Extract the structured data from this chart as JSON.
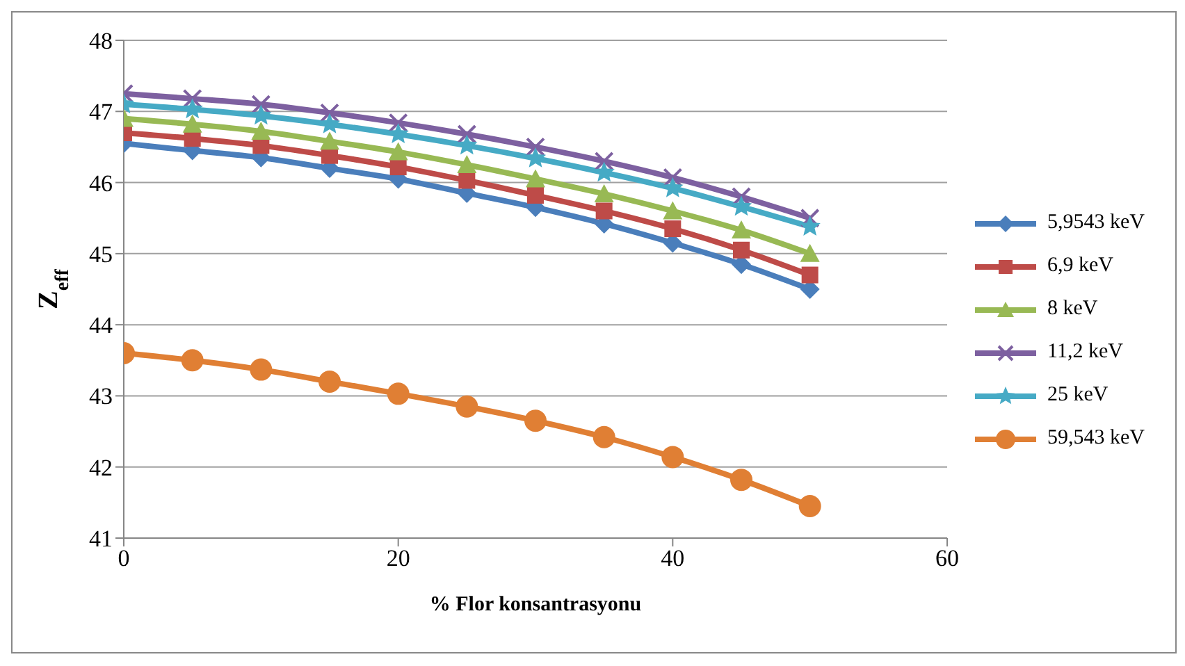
{
  "chart_data": {
    "type": "line",
    "xlabel": "% Flor konsantrasyonu",
    "ylabel": "Z$_{eff}$",
    "x": [
      0,
      5,
      10,
      15,
      20,
      25,
      30,
      35,
      40,
      45,
      50
    ],
    "xlim": [
      0,
      60
    ],
    "xticks": [
      0,
      20,
      40,
      60
    ],
    "ylim": [
      41,
      48
    ],
    "yticks": [
      41,
      42,
      43,
      44,
      45,
      46,
      47,
      48
    ],
    "grid": "y",
    "legend": "right",
    "line_style": "solid",
    "series": [
      {
        "name": "5,9543 keV",
        "color": "#4a7ebb",
        "marker": "diamond",
        "values": [
          46.55,
          46.45,
          46.35,
          46.2,
          46.05,
          45.85,
          45.65,
          45.42,
          45.15,
          44.85,
          44.5
        ]
      },
      {
        "name": "6,9 keV",
        "color": "#be4b48",
        "marker": "square",
        "values": [
          46.7,
          46.62,
          46.52,
          46.38,
          46.22,
          46.03,
          45.82,
          45.6,
          45.35,
          45.05,
          44.7
        ]
      },
      {
        "name": "8 keV",
        "color": "#98b954",
        "marker": "triangle",
        "values": [
          46.9,
          46.82,
          46.72,
          46.58,
          46.43,
          46.25,
          46.05,
          45.84,
          45.6,
          45.33,
          45.0
        ]
      },
      {
        "name": "11,2 keV",
        "color": "#7d60a0",
        "marker": "cross",
        "values": [
          47.25,
          47.18,
          47.1,
          46.98,
          46.84,
          46.68,
          46.5,
          46.3,
          46.07,
          45.8,
          45.5
        ]
      },
      {
        "name": "25 keV",
        "color": "#46aac5",
        "marker": "star",
        "values": [
          47.1,
          47.03,
          46.94,
          46.82,
          46.68,
          46.52,
          46.34,
          46.14,
          45.92,
          45.66,
          45.38
        ]
      },
      {
        "name": "59,543 keV",
        "color": "#e07f34",
        "marker": "circle",
        "values": [
          43.6,
          43.5,
          43.37,
          43.2,
          43.03,
          42.85,
          42.65,
          42.42,
          42.14,
          41.82,
          41.45
        ]
      }
    ]
  }
}
